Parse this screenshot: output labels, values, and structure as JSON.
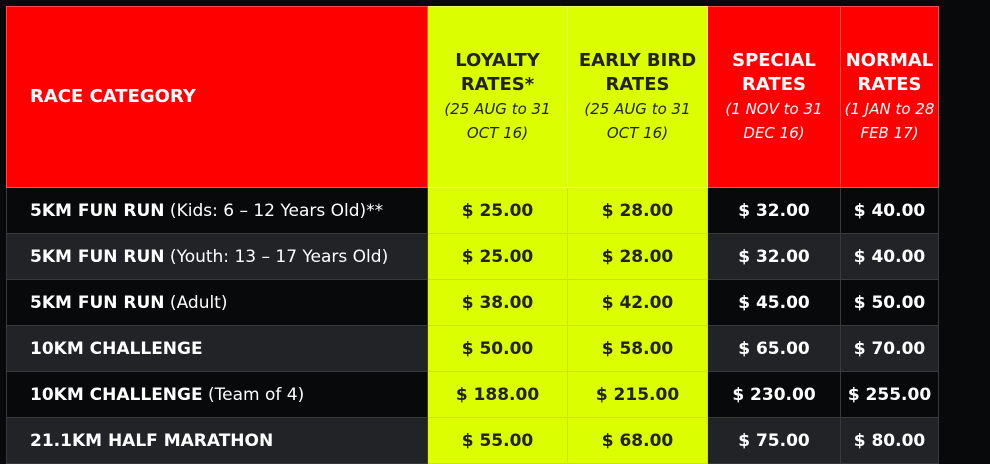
{
  "colors": {
    "header_red": "#ff0000",
    "highlight_yellow": "#dcff00",
    "row_dark": "#08090a",
    "row_alt": "#222326"
  },
  "headers": [
    {
      "title": "RACE CATEGORY",
      "sub": ""
    },
    {
      "title": "LOYALTY RATES*",
      "sub": "(25 AUG to 31 OCT 16)"
    },
    {
      "title": "EARLY BIRD RATES",
      "sub": "(25 AUG to 31 OCT 16)"
    },
    {
      "title": "SPECIAL RATES",
      "sub": "(1 NOV  to 31 DEC 16)"
    },
    {
      "title": "NORMAL RATES",
      "sub": "(1 JAN to 28 FEB 17)"
    }
  ],
  "rows": [
    {
      "category": "5KM FUN RUN",
      "note": " (Kids: 6 – 12 Years Old)**",
      "loyalty": "$ 25.00",
      "early_bird": "$ 28.00",
      "special": "$ 32.00",
      "normal": "$ 40.00"
    },
    {
      "category": "5KM FUN RUN",
      "note": " (Youth: 13 – 17 Years Old)",
      "loyalty": "$ 25.00",
      "early_bird": "$ 28.00",
      "special": "$ 32.00",
      "normal": "$ 40.00"
    },
    {
      "category": "5KM FUN RUN",
      "note": " (Adult)",
      "loyalty": "$ 38.00",
      "early_bird": "$ 42.00",
      "special": "$ 45.00",
      "normal": "$ 50.00"
    },
    {
      "category": "10KM CHALLENGE",
      "note": "",
      "loyalty": "$ 50.00",
      "early_bird": "$ 58.00",
      "special": "$ 65.00",
      "normal": "$ 70.00"
    },
    {
      "category": "10KM CHALLENGE",
      "note": " (Team of 4)",
      "loyalty": "$ 188.00",
      "early_bird": "$ 215.00",
      "special": "$ 230.00",
      "normal": "$ 255.00"
    },
    {
      "category": "21.1KM HALF MARATHON",
      "note": "",
      "loyalty": "$ 55.00",
      "early_bird": "$ 68.00",
      "special": "$ 75.00",
      "normal": "$ 80.00"
    }
  ]
}
